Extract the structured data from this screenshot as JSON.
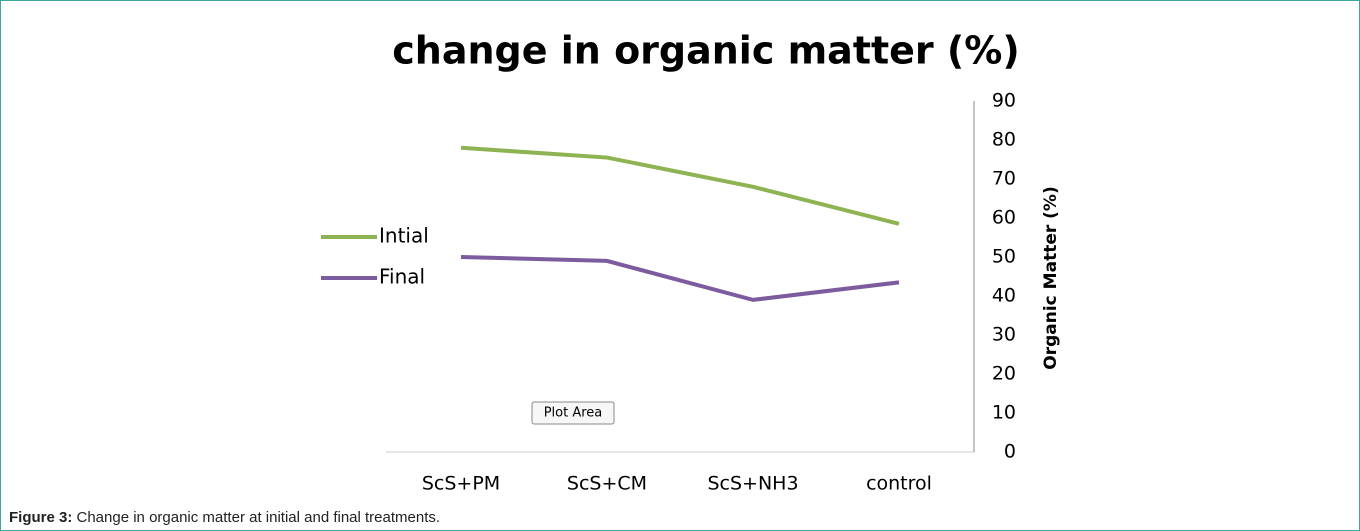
{
  "chart_data": {
    "type": "line",
    "title": "change in organic matter (%)",
    "y_label": "Organic Matter (%)",
    "categories": [
      "ScS+PM",
      "ScS+CM",
      "ScS+NH3",
      "control"
    ],
    "series": [
      {
        "name": "Intial",
        "color": "#8db352",
        "values": [
          78,
          75.5,
          68,
          58.5
        ]
      },
      {
        "name": "Final",
        "color": "#7c5c9e",
        "values": [
          50,
          49,
          39,
          43.5
        ]
      }
    ],
    "ylim": [
      0,
      90
    ],
    "yticks": [
      0,
      10,
      20,
      30,
      40,
      50,
      60,
      70,
      80,
      90
    ],
    "y_axis_side": "right",
    "legend": "left",
    "grid": false,
    "tooltip": "Plot Area"
  },
  "caption": {
    "label": "Figure 3:",
    "text": " Change in organic matter at initial and final treatments."
  }
}
